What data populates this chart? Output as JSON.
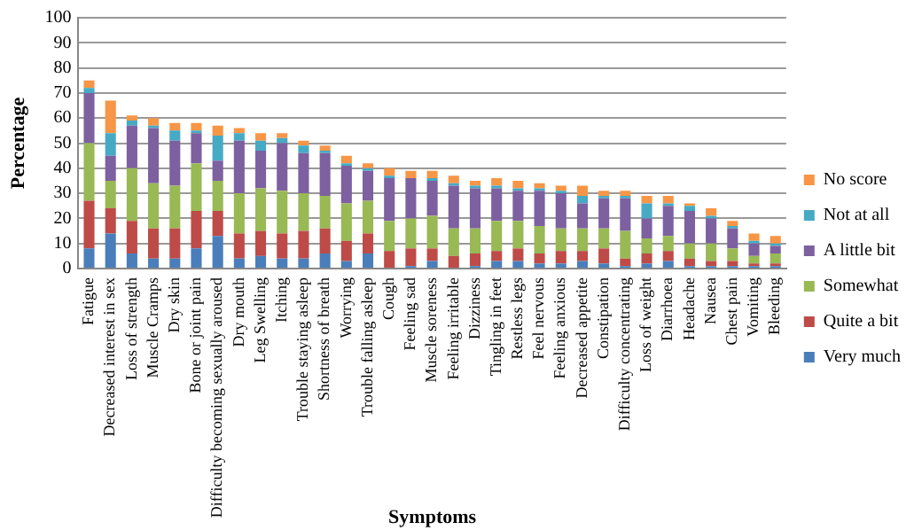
{
  "chart_data": {
    "type": "bar",
    "stacked": true,
    "xlabel": "Symptoms",
    "ylabel": "Percentage",
    "categories": [
      "Fatigue",
      "Decreased interest in sex",
      "Loss of strength",
      "Muscle Cramps",
      "Dry skin",
      "Bone or joint pain",
      "Difficulty becoming sexually aroused",
      "Dry mouth",
      "Leg Swelling",
      "Itching",
      "Trouble staying asleep",
      "Shortness of breath",
      "Worrying",
      "Trouble falling asleep",
      "Cough",
      "Feeling sad",
      "Muscle soreness",
      "Feeling irritable",
      "Dizziness",
      "Tingling in feet",
      "Restless legs",
      "Feel nervous",
      "Feeling anxious",
      "Decreased appetite",
      "Constipation",
      "Difficulty concentrating",
      "Loss of weight",
      "Diarrhoea",
      "Headache",
      "Nausea",
      "Chest pain",
      "Vomiting",
      "Bleeding"
    ],
    "series": [
      {
        "name": "Very much",
        "color": "#4a7ebb",
        "values": [
          8,
          14,
          6,
          4,
          4,
          8,
          13,
          4,
          5,
          4,
          4,
          6,
          3,
          6,
          0,
          1,
          3,
          0,
          1,
          3,
          3,
          2,
          2,
          3,
          2,
          1,
          2,
          3,
          1,
          1,
          1,
          1,
          1
        ]
      },
      {
        "name": "Quite a bit",
        "color": "#be4b48",
        "values": [
          19,
          10,
          13,
          12,
          12,
          15,
          10,
          10,
          10,
          10,
          11,
          10,
          8,
          8,
          7,
          7,
          5,
          5,
          5,
          4,
          5,
          4,
          5,
          4,
          6,
          3,
          4,
          4,
          3,
          2,
          2,
          1,
          1
        ]
      },
      {
        "name": "Somewhat",
        "color": "#98b954",
        "values": [
          23,
          11,
          21,
          18,
          17,
          19,
          12,
          16,
          17,
          17,
          15,
          13,
          15,
          13,
          12,
          12,
          13,
          11,
          10,
          12,
          11,
          11,
          9,
          9,
          8,
          11,
          6,
          6,
          6,
          7,
          5,
          3,
          4
        ]
      },
      {
        "name": "A little bit",
        "color": "#7d60a0",
        "values": [
          20,
          10,
          17,
          22,
          18,
          12,
          8,
          21,
          15,
          19,
          16,
          17,
          15,
          12,
          17,
          16,
          14,
          17,
          16,
          13,
          12,
          14,
          14,
          10,
          12,
          13,
          8,
          12,
          13,
          10,
          8,
          5,
          3
        ]
      },
      {
        "name": "Not at all",
        "color": "#46aac5",
        "values": [
          2,
          9,
          2,
          1,
          4,
          1,
          10,
          3,
          4,
          2,
          3,
          1,
          1,
          1,
          1,
          0,
          1,
          1,
          1,
          1,
          1,
          1,
          1,
          3,
          1,
          1,
          6,
          1,
          2,
          1,
          1,
          1,
          1
        ]
      },
      {
        "name": "No score",
        "color": "#f79646",
        "values": [
          3,
          13,
          2,
          3,
          3,
          3,
          4,
          2,
          3,
          2,
          2,
          2,
          3,
          2,
          3,
          3,
          3,
          3,
          2,
          3,
          3,
          2,
          2,
          4,
          2,
          2,
          3,
          3,
          1,
          3,
          2,
          3,
          3
        ]
      }
    ],
    "ylim": [
      0,
      100
    ],
    "yticks": [
      0,
      10,
      20,
      30,
      40,
      50,
      60,
      70,
      80,
      90,
      100
    ],
    "grid": "y",
    "legend": "right"
  }
}
